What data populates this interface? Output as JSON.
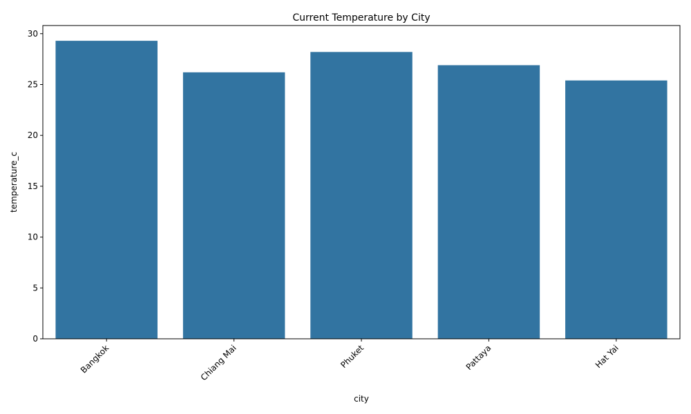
{
  "chart_data": {
    "type": "bar",
    "title": "Current Temperature by City",
    "xlabel": "city",
    "ylabel": "temperature_c",
    "categories": [
      "Bangkok",
      "Chiang Mai",
      "Phuket",
      "Pattaya",
      "Hat Yai"
    ],
    "values": [
      29.3,
      26.2,
      28.2,
      26.9,
      25.4
    ],
    "ylim": [
      0,
      30.8
    ],
    "yticks": [
      0,
      5,
      10,
      15,
      20,
      25,
      30
    ],
    "ytick_labels": [
      "0",
      "5",
      "10",
      "15",
      "20",
      "25",
      "30"
    ],
    "bar_color": "#3274a1",
    "xtick_rotation_deg": 45,
    "grid": false,
    "legend": "none"
  }
}
